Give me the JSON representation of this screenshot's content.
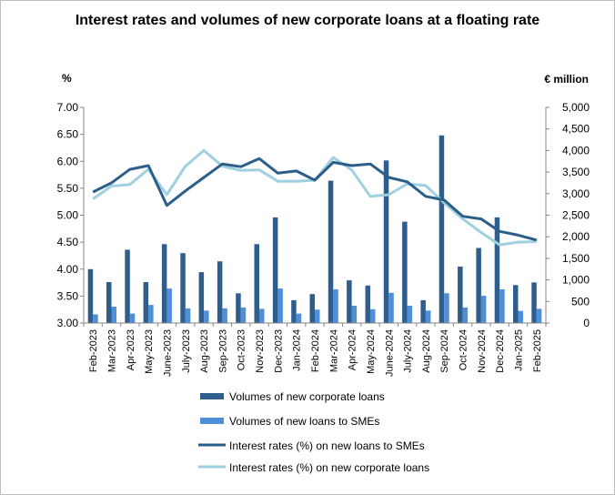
{
  "chart_data": {
    "type": "bar",
    "title": "Interest rates and volumes of new corporate loans at a floating rate",
    "left_axis_unit": "%",
    "right_axis_unit": "€ million",
    "left_ylim": [
      3.0,
      7.0
    ],
    "left_ticks": [
      "3.00",
      "3.50",
      "4.00",
      "4.50",
      "5.00",
      "5.50",
      "6.00",
      "6.50",
      "7.00"
    ],
    "right_ylim": [
      0,
      5000
    ],
    "right_ticks": [
      "0",
      "500",
      "1,000",
      "1,500",
      "2,000",
      "2,500",
      "3,000",
      "3,500",
      "4,000",
      "4,500",
      "5,000"
    ],
    "grid": false,
    "legend_position": "bottom",
    "categories": [
      "Feb-2023",
      "Mar-2023",
      "Apr-2023",
      "May-2023",
      "June-2023",
      "July-2023",
      "Aug-2023",
      "Sep-2023",
      "Oct-2023",
      "Nov-2023",
      "Dec-2023",
      "Jan-2024",
      "Feb-2024",
      "Mar-2024",
      "Apr-2024",
      "May-2024",
      "June-2024",
      "July-2024",
      "Aug-2024",
      "Sep-2024",
      "Oct-2024",
      "Nov-2024",
      "Dec-2024",
      "Jan-2025",
      "Feb-2025"
    ],
    "series": [
      {
        "name": "Volumes of new corporate loans",
        "type": "bar",
        "axis": "right",
        "color": "#2f5d8c",
        "values": [
          1250,
          950,
          1700,
          950,
          1830,
          1620,
          1180,
          1430,
          690,
          1830,
          2450,
          530,
          670,
          3300,
          990,
          870,
          3770,
          2350,
          530,
          4350,
          1310,
          1740,
          2450,
          880,
          940
        ]
      },
      {
        "name": "Volumes of new loans to SMEs",
        "type": "bar",
        "axis": "right",
        "color": "#4f8fd9",
        "values": [
          200,
          380,
          220,
          420,
          800,
          340,
          290,
          340,
          360,
          330,
          800,
          220,
          310,
          780,
          400,
          320,
          700,
          400,
          290,
          690,
          360,
          630,
          780,
          280,
          330
        ]
      },
      {
        "name": "Interest rates (%) on new loans to SMEs",
        "type": "line",
        "axis": "left",
        "color": "#2b5f8a",
        "values": [
          5.43,
          5.6,
          5.85,
          5.92,
          5.18,
          5.45,
          5.7,
          5.95,
          5.9,
          6.05,
          5.78,
          5.82,
          5.65,
          5.98,
          5.92,
          5.95,
          5.7,
          5.62,
          5.35,
          5.28,
          4.98,
          4.93,
          4.7,
          4.63,
          4.54
        ]
      },
      {
        "name": "Interest rates (%) on new corporate loans",
        "type": "line",
        "axis": "left",
        "color": "#9fd0e0",
        "values": [
          5.3,
          5.54,
          5.57,
          5.85,
          5.38,
          5.91,
          6.2,
          5.91,
          5.83,
          5.84,
          5.63,
          5.63,
          5.65,
          6.07,
          5.84,
          5.35,
          5.38,
          5.58,
          5.55,
          5.23,
          4.93,
          4.68,
          4.45,
          4.5,
          4.51
        ]
      }
    ]
  }
}
